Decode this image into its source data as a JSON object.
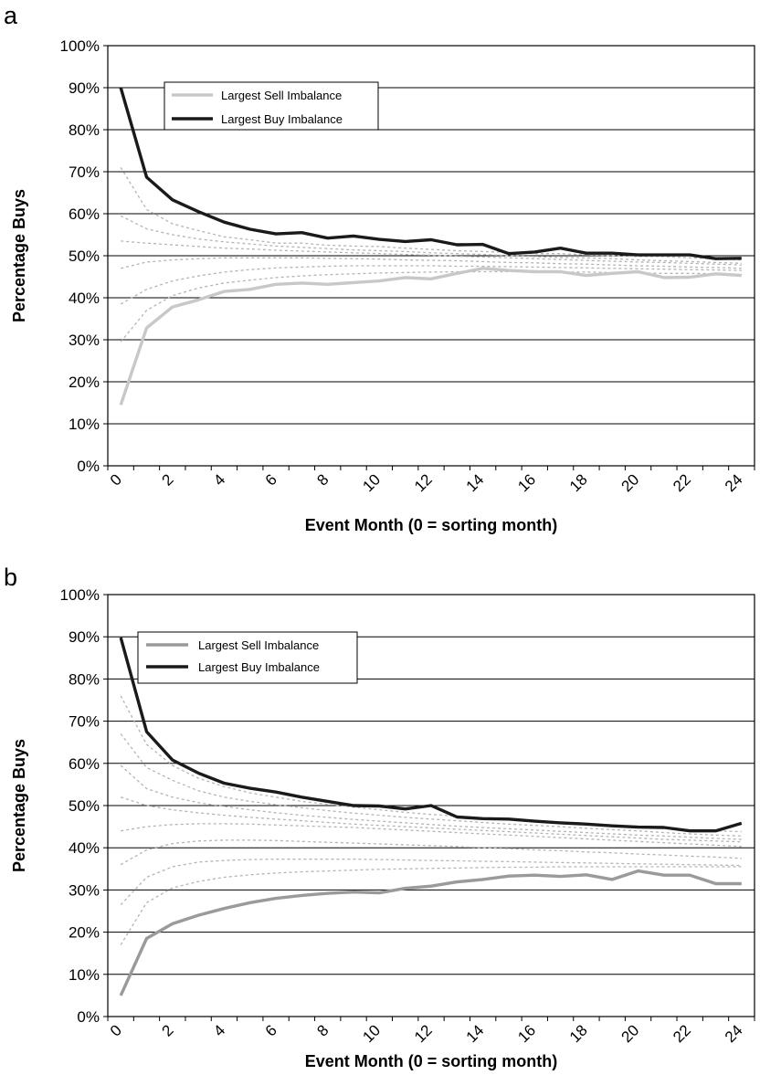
{
  "chart_data": [
    {
      "panel": "a",
      "type": "line",
      "xlabel": "Event Month (0 = sorting month)",
      "ylabel": "Percentage Buys",
      "ylim": [
        0,
        100
      ],
      "yticks": [
        "0%",
        "10%",
        "20%",
        "30%",
        "40%",
        "50%",
        "60%",
        "70%",
        "80%",
        "90%",
        "100%"
      ],
      "xticks": [
        "0",
        "2",
        "4",
        "6",
        "8",
        "10",
        "12",
        "14",
        "16",
        "18",
        "20",
        "22",
        "24"
      ],
      "grid": "horizontal",
      "legend_position": "top-left",
      "x": [
        0,
        1,
        2,
        3,
        4,
        5,
        6,
        7,
        8,
        9,
        10,
        11,
        12,
        13,
        14,
        15,
        16,
        17,
        18,
        19,
        20,
        21,
        22,
        23,
        24
      ],
      "series": [
        {
          "name": "Largest Sell Imbalance",
          "color": "#c8c8c8",
          "style": "solid",
          "values": [
            14.5,
            32.8,
            37.8,
            39.5,
            41.5,
            42.0,
            43.2,
            43.5,
            43.2,
            43.6,
            44.0,
            44.8,
            44.5,
            45.8,
            47.0,
            46.5,
            46.2,
            46.2,
            45.3,
            45.8,
            46.2,
            44.8,
            44.9,
            45.7,
            45.3
          ]
        },
        {
          "name": "Largest Buy Imbalance",
          "color": "#1a1a1a",
          "style": "solid",
          "values": [
            90.0,
            68.7,
            63.3,
            60.5,
            58.0,
            56.3,
            55.2,
            55.5,
            54.2,
            54.7,
            53.9,
            53.4,
            53.8,
            52.6,
            52.7,
            50.5,
            50.9,
            51.8,
            50.6,
            50.6,
            50.2,
            50.2,
            50.2,
            49.3,
            49.4
          ]
        },
        {
          "color": "#b4b4b4",
          "style": "dashed",
          "values": [
            71.0,
            61.0,
            57.6,
            56.0,
            54.5,
            53.8,
            53.0,
            53.0,
            52.5,
            52.3,
            52.2,
            51.8,
            51.5,
            51.2,
            51.0,
            50.8,
            50.5,
            50.5,
            50.2,
            50.0,
            49.8,
            49.8,
            49.5,
            49.3,
            49.0
          ]
        },
        {
          "color": "#b4b4b4",
          "style": "dashed",
          "values": [
            59.5,
            56.4,
            55.0,
            54.0,
            53.3,
            52.8,
            52.3,
            52.0,
            51.7,
            51.4,
            51.2,
            51.0,
            50.7,
            50.5,
            50.3,
            50.0,
            49.8,
            49.6,
            49.5,
            49.3,
            49.0,
            48.8,
            48.6,
            48.4,
            48.2
          ]
        },
        {
          "color": "#b4b4b4",
          "style": "dashed",
          "values": [
            53.5,
            53.0,
            52.6,
            52.2,
            51.8,
            51.6,
            51.3,
            51.1,
            50.9,
            50.7,
            50.5,
            50.3,
            50.1,
            49.9,
            49.7,
            49.5,
            49.3,
            49.1,
            48.9,
            48.7,
            48.5,
            48.4,
            48.2,
            48.0,
            47.8
          ]
        },
        {
          "color": "#b4b4b4",
          "style": "dashed",
          "values": [
            47.0,
            48.5,
            49.0,
            49.3,
            49.5,
            49.5,
            49.5,
            49.5,
            49.4,
            49.3,
            49.2,
            49.0,
            48.9,
            48.8,
            48.6,
            48.4,
            48.3,
            48.1,
            48.0,
            47.8,
            47.6,
            47.5,
            47.3,
            47.2,
            47.0
          ]
        },
        {
          "color": "#b4b4b4",
          "style": "dashed",
          "values": [
            38.5,
            42.0,
            44.0,
            45.2,
            46.1,
            46.7,
            47.1,
            47.3,
            47.5,
            47.6,
            47.6,
            47.6,
            47.6,
            47.5,
            47.5,
            47.4,
            47.3,
            47.2,
            47.1,
            47.0,
            46.9,
            46.8,
            46.7,
            46.6,
            46.5
          ]
        },
        {
          "color": "#b4b4b4",
          "style": "dashed",
          "values": [
            29.5,
            37.0,
            40.5,
            42.3,
            43.5,
            44.2,
            44.8,
            45.2,
            45.5,
            45.7,
            45.9,
            46.0,
            46.1,
            46.2,
            46.2,
            46.2,
            46.2,
            46.1,
            46.1,
            46.0,
            45.9,
            45.8,
            45.8,
            45.7,
            45.6
          ]
        }
      ],
      "legend": [
        {
          "label": "Largest Sell Imbalance",
          "color": "#c8c8c8"
        },
        {
          "label": "Largest Buy Imbalance",
          "color": "#1a1a1a"
        }
      ]
    },
    {
      "panel": "b",
      "type": "line",
      "xlabel": "Event Month (0 = sorting month)",
      "ylabel": "Percentage Buys",
      "ylim": [
        0,
        100
      ],
      "yticks": [
        "0%",
        "10%",
        "20%",
        "30%",
        "40%",
        "50%",
        "60%",
        "70%",
        "80%",
        "90%",
        "100%"
      ],
      "xticks": [
        "0",
        "2",
        "4",
        "6",
        "8",
        "10",
        "12",
        "14",
        "16",
        "18",
        "20",
        "22",
        "24"
      ],
      "grid": "horizontal",
      "legend_position": "top-left",
      "x": [
        0,
        1,
        2,
        3,
        4,
        5,
        6,
        7,
        8,
        9,
        10,
        11,
        12,
        13,
        14,
        15,
        16,
        17,
        18,
        19,
        20,
        21,
        22,
        23,
        24
      ],
      "series": [
        {
          "name": "Largest Sell Imbalance",
          "color": "#9a9a9a",
          "style": "solid",
          "values": [
            5.0,
            18.5,
            22.0,
            24.0,
            25.6,
            27.0,
            28.0,
            28.7,
            29.2,
            29.5,
            29.3,
            30.4,
            30.9,
            31.9,
            32.5,
            33.3,
            33.5,
            33.2,
            33.6,
            32.5,
            34.5,
            33.5,
            33.5,
            31.5,
            31.5
          ]
        },
        {
          "name": "Largest Buy Imbalance",
          "color": "#1a1a1a",
          "style": "solid",
          "values": [
            89.8,
            67.5,
            60.8,
            57.7,
            55.3,
            54.1,
            53.2,
            52.0,
            51.0,
            50.0,
            49.9,
            49.2,
            50.0,
            47.3,
            46.9,
            46.8,
            46.3,
            45.9,
            45.6,
            45.2,
            44.9,
            44.8,
            44.0,
            44.0,
            45.8
          ]
        },
        {
          "color": "#b4b4b4",
          "style": "dashed",
          "values": [
            76.0,
            64.5,
            59.5,
            56.5,
            54.5,
            53.0,
            52.0,
            51.0,
            50.3,
            49.6,
            49.0,
            48.4,
            47.9,
            47.5,
            47.1,
            46.7,
            46.4,
            46.0,
            45.6,
            45.3,
            45.0,
            44.6,
            44.3,
            44.0,
            43.8
          ]
        },
        {
          "color": "#b4b4b4",
          "style": "dashed",
          "values": [
            67.0,
            59.0,
            56.0,
            53.5,
            52.0,
            51.0,
            50.2,
            49.5,
            48.8,
            48.2,
            47.7,
            47.2,
            46.8,
            46.4,
            46.0,
            45.6,
            45.3,
            45.0,
            44.6,
            44.3,
            44.0,
            43.6,
            43.3,
            43.0,
            42.8
          ]
        },
        {
          "color": "#b4b4b4",
          "style": "dashed",
          "values": [
            59.5,
            54.0,
            52.0,
            50.7,
            49.8,
            49.0,
            48.3,
            47.7,
            47.2,
            46.7,
            46.3,
            45.9,
            45.5,
            45.1,
            44.8,
            44.5,
            44.2,
            43.9,
            43.6,
            43.3,
            43.0,
            42.8,
            42.5,
            42.2,
            42.0
          ]
        },
        {
          "color": "#b4b4b4",
          "style": "dashed",
          "values": [
            52.0,
            50.0,
            49.0,
            48.3,
            47.7,
            47.2,
            46.8,
            46.4,
            46.0,
            45.6,
            45.3,
            45.0,
            44.7,
            44.4,
            44.1,
            43.8,
            43.5,
            43.2,
            42.9,
            42.6,
            42.3,
            42.0,
            41.8,
            41.6,
            41.4
          ]
        },
        {
          "color": "#b4b4b4",
          "style": "dashed",
          "values": [
            44.0,
            45.0,
            45.5,
            45.7,
            45.7,
            45.6,
            45.4,
            45.2,
            45.0,
            44.8,
            44.5,
            44.2,
            43.9,
            43.6,
            43.3,
            43.0,
            42.7,
            42.4,
            42.1,
            41.8,
            41.5,
            41.2,
            40.9,
            40.6,
            40.3
          ]
        },
        {
          "color": "#b4b4b4",
          "style": "dashed",
          "values": [
            36.0,
            39.5,
            41.0,
            41.6,
            41.8,
            41.8,
            41.7,
            41.5,
            41.3,
            41.1,
            40.9,
            40.7,
            40.5,
            40.3,
            40.0,
            39.8,
            39.5,
            39.3,
            39.0,
            38.8,
            38.5,
            38.3,
            38.0,
            37.8,
            37.5
          ]
        },
        {
          "color": "#b4b4b4",
          "style": "dashed",
          "values": [
            26.5,
            33.0,
            35.5,
            36.6,
            37.0,
            37.2,
            37.3,
            37.3,
            37.3,
            37.3,
            37.2,
            37.1,
            37.0,
            36.9,
            36.8,
            36.7,
            36.6,
            36.5,
            36.4,
            36.3,
            36.2,
            36.1,
            36.0,
            35.9,
            35.8
          ]
        },
        {
          "color": "#b4b4b4",
          "style": "dashed",
          "values": [
            17.0,
            27.0,
            30.5,
            32.0,
            33.0,
            33.6,
            34.0,
            34.3,
            34.5,
            34.7,
            34.9,
            35.0,
            35.1,
            35.2,
            35.3,
            35.4,
            35.4,
            35.5,
            35.5,
            35.5,
            35.5,
            35.5,
            35.5,
            35.5,
            35.5
          ]
        }
      ],
      "legend": [
        {
          "label": "Largest Sell Imbalance",
          "color": "#9a9a9a"
        },
        {
          "label": "Largest Buy Imbalance",
          "color": "#1a1a1a"
        }
      ]
    }
  ]
}
